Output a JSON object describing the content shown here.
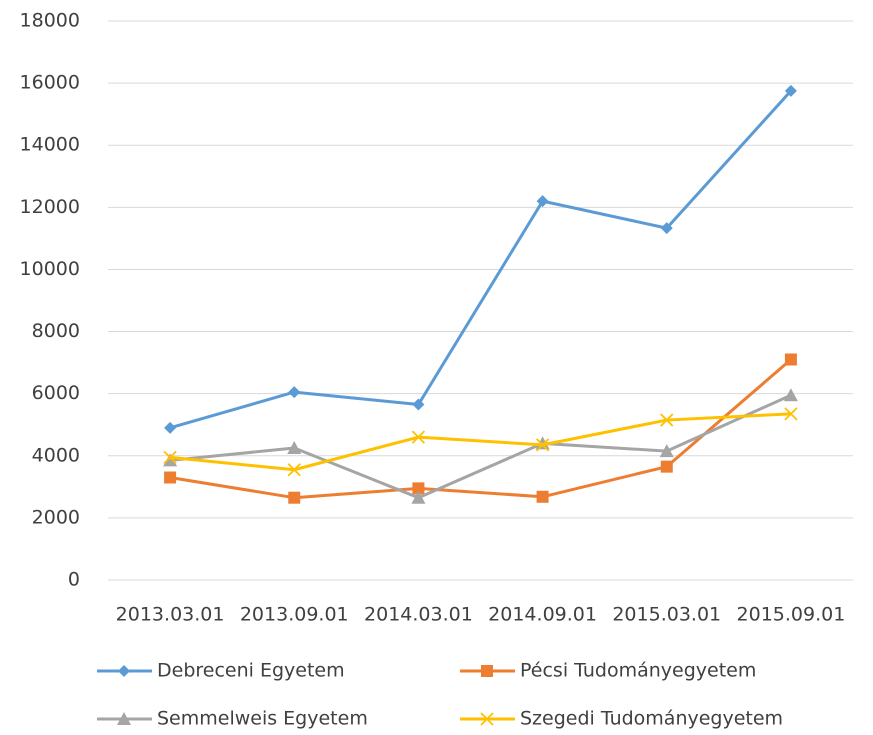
{
  "chart_data": {
    "type": "line",
    "categories": [
      "2013.03.01",
      "2013.09.01",
      "2014.03.01",
      "2014.09.01",
      "2015.03.01",
      "2015.09.01"
    ],
    "series": [
      {
        "name": "Debreceni Egyetem",
        "color": "#5b9bd5",
        "marker": "diamond",
        "values": [
          4900,
          6050,
          5650,
          12200,
          11330,
          15750
        ]
      },
      {
        "name": "Pécsi Tudományegyetem",
        "color": "#ed7d31",
        "marker": "square",
        "values": [
          3300,
          2650,
          2950,
          2680,
          3650,
          7100
        ]
      },
      {
        "name": "Semmelweis Egyetem",
        "color": "#a5a5a5",
        "marker": "triangle",
        "values": [
          3850,
          4250,
          2650,
          4400,
          4150,
          5950
        ]
      },
      {
        "name": "Szegedi Tudományegyetem",
        "color": "#ffc000",
        "marker": "x",
        "values": [
          3950,
          3550,
          4600,
          4350,
          5150,
          5350
        ]
      }
    ],
    "ylim": [
      0,
      18000
    ],
    "yticks": [
      0,
      2000,
      4000,
      6000,
      8000,
      10000,
      12000,
      14000,
      16000,
      18000
    ],
    "grid": true,
    "legend": "bottom"
  }
}
